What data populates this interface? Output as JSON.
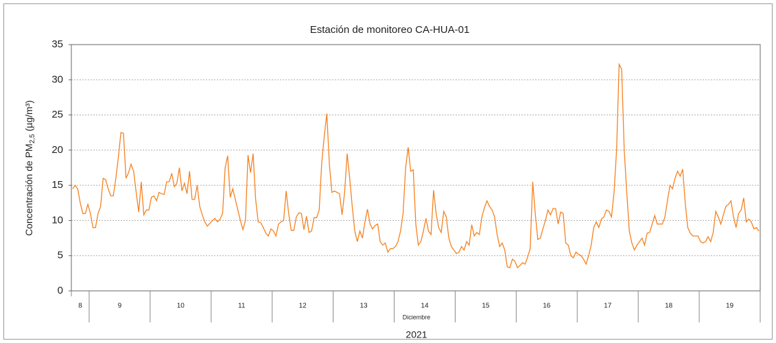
{
  "chart_data": {
    "type": "line",
    "title": "Estación de monitoreo CA-HUA-01",
    "y_label": {
      "text": "Concentración de PM",
      "subscript": "2,5",
      "suffix": " (µg/m³)"
    },
    "x_label": "Diciembre",
    "year": "2021",
    "color": "#f58220",
    "ylim": [
      0,
      35
    ],
    "yticks": [
      0,
      5,
      10,
      15,
      20,
      25,
      30,
      35
    ],
    "grid": true,
    "days": [
      {
        "label": "8",
        "values": [
          14.5,
          15,
          14.5,
          12.5,
          11,
          11,
          12.3
        ]
      },
      {
        "label": "9",
        "values": [
          11,
          9,
          9,
          11,
          12,
          16,
          15.8,
          14.5,
          13.5,
          13.5,
          16,
          19,
          22.5,
          22.4,
          16,
          16.8,
          18,
          17,
          14,
          11.2,
          15.5,
          10.8,
          11.5,
          11.5
        ]
      },
      {
        "label": "10",
        "values": [
          13.3,
          13.5,
          12.8,
          14,
          13.8,
          13.7,
          15.5,
          15.5,
          16.7,
          14.8,
          15.3,
          17.5,
          14.2,
          15.3,
          13.8,
          17,
          13,
          13,
          15,
          12,
          10.8,
          9.8,
          9.2,
          9.6
        ]
      },
      {
        "label": "11",
        "values": [
          10,
          10.3,
          9.8,
          10.2,
          11,
          17.5,
          19.2,
          13.3,
          14.5,
          13,
          11.5,
          10,
          8.7,
          10,
          19.3,
          16.8,
          19.5,
          13,
          9.8,
          9.7,
          9,
          8.2,
          7.8,
          8.8
        ]
      },
      {
        "label": "12",
        "values": [
          8.5,
          7.8,
          9.5,
          9.8,
          10,
          14.2,
          11,
          8.6,
          8.6,
          10.5,
          11.1,
          11,
          8.7,
          10.6,
          8.3,
          8.5,
          10.4,
          10.4,
          11.5,
          18.2,
          22,
          25.2,
          18,
          14
        ]
      },
      {
        "label": "13",
        "values": [
          14.2,
          14,
          13.8,
          10.8,
          14,
          19.5,
          16,
          12,
          8.5,
          7,
          8.5,
          7.5,
          9.8,
          11.6,
          9.5,
          8.8,
          9.3,
          9.5,
          7,
          6.5,
          6.8,
          5.5,
          6,
          6
        ]
      },
      {
        "label": "14",
        "values": [
          6.3,
          7,
          8.5,
          11,
          17.5,
          20.4,
          17,
          17.2,
          9.5,
          6.5,
          7,
          8.5,
          10.3,
          8.5,
          8,
          14.3,
          11,
          9,
          8.3,
          11.3,
          10.5,
          7.5,
          6.3,
          5.8
        ]
      },
      {
        "label": "15",
        "values": [
          5.3,
          5.5,
          6.3,
          5.8,
          7,
          6.5,
          9.4,
          7.8,
          8.3,
          8,
          10.5,
          11.8,
          12.8,
          12,
          11.5,
          10.5,
          8,
          6.3,
          6.8,
          5.8,
          3.4,
          3.3,
          4.5,
          4.2
        ]
      },
      {
        "label": "16",
        "values": [
          3.3,
          3.6,
          4,
          3.8,
          4.8,
          6,
          15.5,
          11,
          7.3,
          7.5,
          8.8,
          10,
          11.5,
          10.8,
          11.7,
          11.7,
          9.5,
          11.2,
          11,
          6.8,
          6.5,
          5,
          4.7,
          5.5
        ]
      },
      {
        "label": "17",
        "values": [
          5.2,
          5,
          4.5,
          3.8,
          5,
          6.5,
          9,
          9.8,
          9,
          10.2,
          10.5,
          11.5,
          11.3,
          10.5,
          14,
          20,
          32.2,
          31.5,
          20,
          14,
          8.5,
          6.8,
          5.8,
          6.5
        ]
      },
      {
        "label": "18",
        "values": [
          7,
          7.5,
          6.5,
          8.2,
          8.3,
          9.5,
          10.7,
          9.5,
          9.5,
          9.5,
          10.5,
          12.8,
          15,
          14.5,
          16,
          17,
          16.3,
          17.3,
          12.5,
          9,
          8.2,
          7.8,
          7.8,
          7.8
        ]
      },
      {
        "label": "19",
        "values": [
          7,
          6.8,
          7,
          7.7,
          7,
          8.3,
          11.3,
          10.5,
          9.5,
          10.8,
          12,
          12.3,
          12.8,
          10.5,
          9,
          11,
          11.5,
          13.2,
          9.8,
          10.2,
          9.8,
          8.8,
          9,
          8.5
        ]
      }
    ]
  }
}
